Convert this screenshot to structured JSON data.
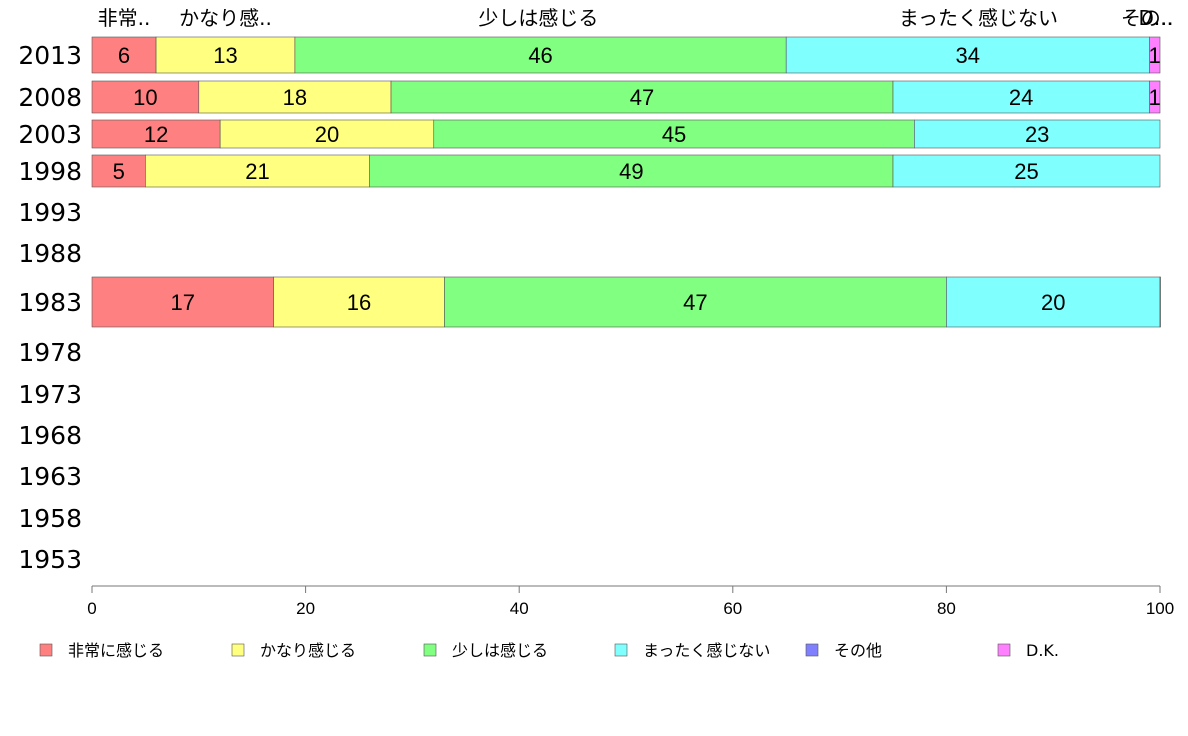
{
  "chart_data": {
    "type": "bar",
    "orientation": "horizontal",
    "stacked": true,
    "xlim": [
      0,
      100
    ],
    "x_ticks": [
      "0",
      "20",
      "40",
      "60",
      "80",
      "100"
    ],
    "categories": [
      "2013",
      "2008",
      "2003",
      "1998",
      "1993",
      "1988",
      "1983",
      "1978",
      "1973",
      "1968",
      "1963",
      "1958",
      "1953"
    ],
    "series": [
      {
        "name": "非常に感じる",
        "short_label": "非常..",
        "color": "#ff8080",
        "values": [
          6,
          10,
          12,
          5,
          null,
          null,
          17,
          null,
          null,
          null,
          null,
          null,
          null
        ]
      },
      {
        "name": "かなり感じる",
        "short_label": "かなり感..",
        "color": "#ffff80",
        "values": [
          13,
          18,
          20,
          21,
          null,
          null,
          16,
          null,
          null,
          null,
          null,
          null,
          null
        ]
      },
      {
        "name": "少しは感じる",
        "short_label": "少しは感じる",
        "color": "#80ff80",
        "values": [
          46,
          47,
          45,
          49,
          null,
          null,
          47,
          null,
          null,
          null,
          null,
          null,
          null
        ]
      },
      {
        "name": "まったく感じない",
        "short_label": "まったく感じない",
        "color": "#80ffff",
        "values": [
          34,
          24,
          23,
          25,
          null,
          null,
          20,
          null,
          null,
          null,
          null,
          null,
          null
        ]
      },
      {
        "name": "その他",
        "short_label": "その..",
        "color": "#8080ff",
        "values": [
          0,
          0,
          0,
          0,
          null,
          null,
          0,
          null,
          null,
          null,
          null,
          null,
          null
        ]
      },
      {
        "name": "D.K.",
        "short_label": "D...",
        "color": "#ff80ff",
        "values": [
          1,
          1,
          0,
          0,
          null,
          null,
          0.4,
          null,
          null,
          null,
          null,
          null,
          null
        ]
      }
    ],
    "value_labels": [
      [
        "6",
        "13",
        "46",
        "34",
        "",
        "1"
      ],
      [
        "10",
        "18",
        "47",
        "24",
        "",
        "1"
      ],
      [
        "12",
        "20",
        "45",
        "23",
        "",
        ""
      ],
      [
        "5",
        "21",
        "49",
        "25",
        "",
        ""
      ],
      [
        "",
        "",
        "",
        "",
        "",
        ""
      ],
      [
        "",
        "",
        "",
        "",
        "",
        ""
      ],
      [
        "17",
        "16",
        "47",
        "20",
        "",
        ""
      ],
      [
        "",
        "",
        "",
        "",
        "",
        ""
      ],
      [
        "",
        "",
        "",
        "",
        "",
        ""
      ],
      [
        "",
        "",
        "",
        "",
        "",
        ""
      ],
      [
        "",
        "",
        "",
        "",
        "",
        ""
      ],
      [
        "",
        "",
        "",
        "",
        "",
        ""
      ],
      [
        "",
        "",
        "",
        "",
        "",
        ""
      ]
    ],
    "legend_position": "bottom",
    "grid": false
  }
}
